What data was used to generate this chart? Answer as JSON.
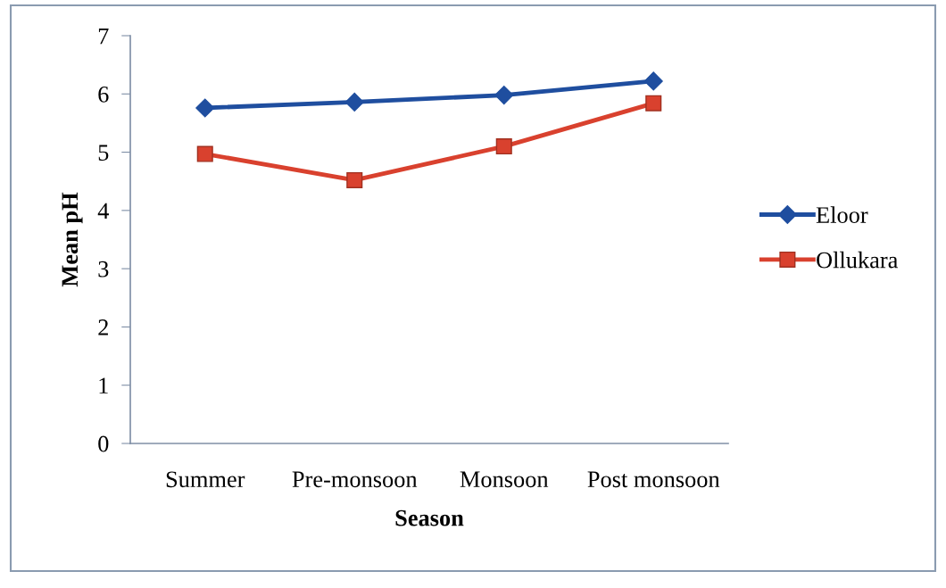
{
  "chart_data": {
    "type": "line",
    "xlabel": "Season",
    "ylabel": "Mean pH",
    "categories": [
      "Summer",
      "Pre-monsoon",
      "Monsoon",
      "Post monsoon"
    ],
    "series": [
      {
        "name": "Eloor",
        "color": "#1f4e9f",
        "marker": "diamond",
        "values": [
          5.76,
          5.86,
          5.98,
          6.22
        ]
      },
      {
        "name": "Ollukara",
        "color": "#d9412e",
        "marker": "square",
        "values": [
          4.97,
          4.52,
          5.1,
          5.84
        ]
      }
    ],
    "ylim": [
      0,
      7
    ],
    "yticks": [
      0,
      1,
      2,
      3,
      4,
      5,
      6,
      7
    ],
    "grid": false,
    "legend": "right",
    "line_style": "solid"
  }
}
